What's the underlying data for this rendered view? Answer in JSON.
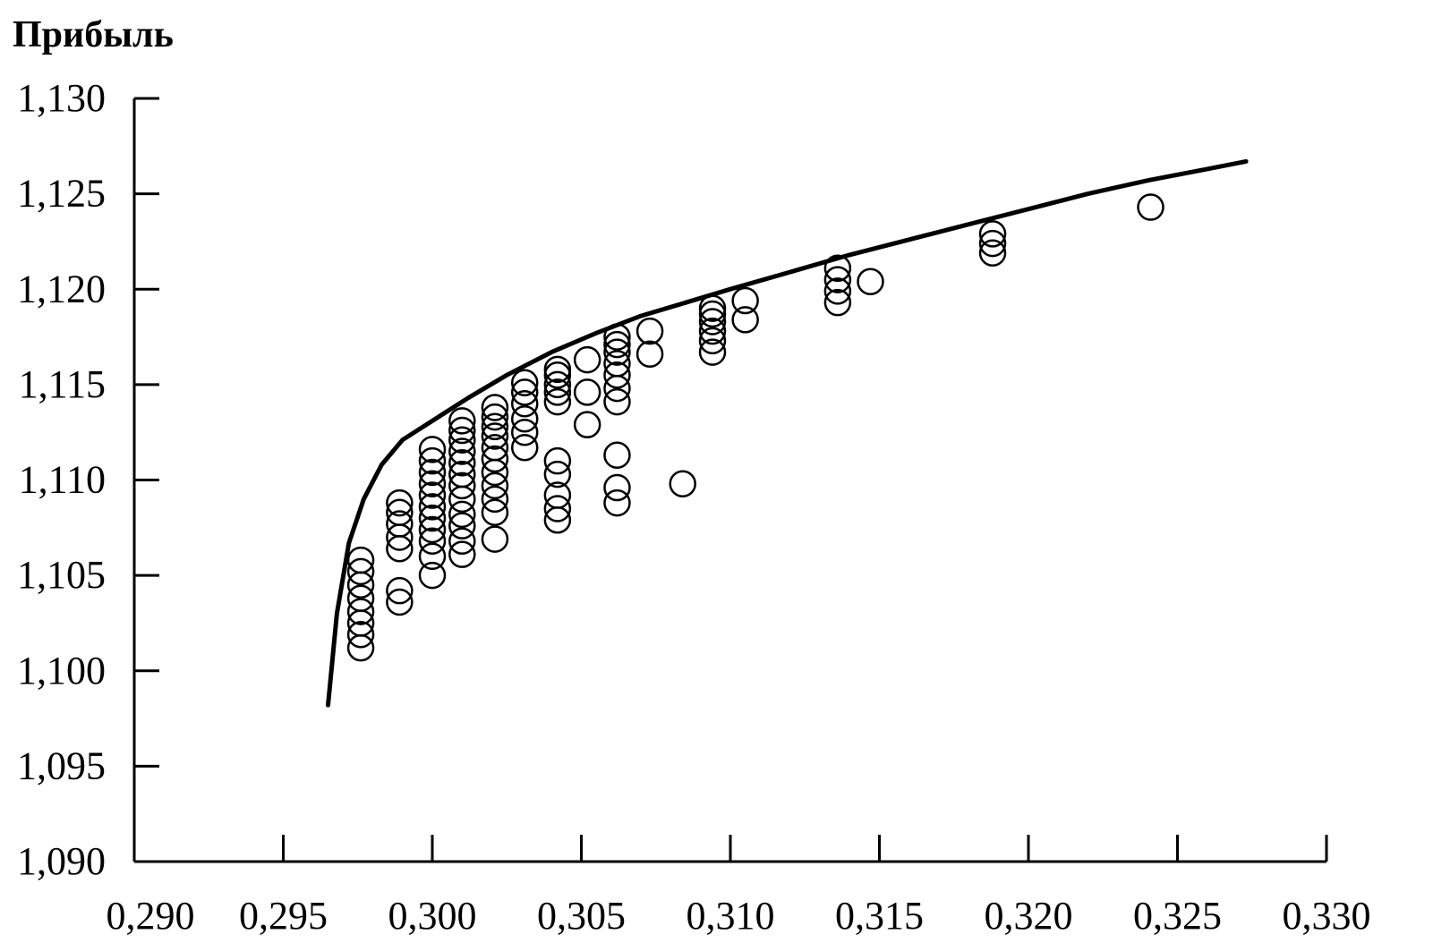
{
  "chart_data": {
    "type": "scatter",
    "title": "",
    "xlabel": "",
    "ylabel": "Прибыль",
    "xlim": [
      0.29,
      0.33
    ],
    "ylim": [
      1.09,
      1.13
    ],
    "x_ticks": [
      {
        "value": 0.29,
        "label": "0,290"
      },
      {
        "value": 0.295,
        "label": "0,295"
      },
      {
        "value": 0.3,
        "label": "0,300"
      },
      {
        "value": 0.305,
        "label": "0,305"
      },
      {
        "value": 0.31,
        "label": "0,310"
      },
      {
        "value": 0.315,
        "label": "0,315"
      },
      {
        "value": 0.32,
        "label": "0,320"
      },
      {
        "value": 0.325,
        "label": "0,325"
      },
      {
        "value": 0.33,
        "label": "0,330"
      }
    ],
    "y_ticks": [
      {
        "value": 1.09,
        "label": "1,090"
      },
      {
        "value": 1.095,
        "label": "1,095"
      },
      {
        "value": 1.1,
        "label": "1,100"
      },
      {
        "value": 1.105,
        "label": "1,105"
      },
      {
        "value": 1.11,
        "label": "1,110"
      },
      {
        "value": 1.115,
        "label": "1,115"
      },
      {
        "value": 1.12,
        "label": "1,120"
      },
      {
        "value": 1.125,
        "label": "1,125"
      },
      {
        "value": 1.13,
        "label": "1,130"
      }
    ],
    "grid": false,
    "series": [
      {
        "kind": "points",
        "marker": "open-circle",
        "color": "#000000",
        "points": [
          [
            0.2976,
            1.1012
          ],
          [
            0.2976,
            1.1019
          ],
          [
            0.2976,
            1.1025
          ],
          [
            0.2976,
            1.1031
          ],
          [
            0.2976,
            1.1038
          ],
          [
            0.2976,
            1.1045
          ],
          [
            0.2976,
            1.1052
          ],
          [
            0.2976,
            1.1058
          ],
          [
            0.2989,
            1.1036
          ],
          [
            0.2989,
            1.1042
          ],
          [
            0.2989,
            1.1064
          ],
          [
            0.2989,
            1.107
          ],
          [
            0.2989,
            1.1077
          ],
          [
            0.2989,
            1.1083
          ],
          [
            0.2989,
            1.1088
          ],
          [
            0.3,
            1.105
          ],
          [
            0.3,
            1.106
          ],
          [
            0.3,
            1.1068
          ],
          [
            0.3,
            1.1074
          ],
          [
            0.3,
            1.108
          ],
          [
            0.3,
            1.1086
          ],
          [
            0.3,
            1.1092
          ],
          [
            0.3,
            1.1098
          ],
          [
            0.3,
            1.1104
          ],
          [
            0.3,
            1.111
          ],
          [
            0.3,
            1.1116
          ],
          [
            0.301,
            1.1061
          ],
          [
            0.301,
            1.1068
          ],
          [
            0.301,
            1.1076
          ],
          [
            0.301,
            1.1082
          ],
          [
            0.301,
            1.109
          ],
          [
            0.301,
            1.1097
          ],
          [
            0.301,
            1.1103
          ],
          [
            0.301,
            1.1109
          ],
          [
            0.301,
            1.1115
          ],
          [
            0.301,
            1.1121
          ],
          [
            0.301,
            1.1126
          ],
          [
            0.301,
            1.1131
          ],
          [
            0.3021,
            1.1069
          ],
          [
            0.3021,
            1.1083
          ],
          [
            0.3021,
            1.109
          ],
          [
            0.3021,
            1.1097
          ],
          [
            0.3021,
            1.1104
          ],
          [
            0.3021,
            1.1111
          ],
          [
            0.3021,
            1.1117
          ],
          [
            0.3021,
            1.1123
          ],
          [
            0.3021,
            1.1128
          ],
          [
            0.3021,
            1.1133
          ],
          [
            0.3021,
            1.1138
          ],
          [
            0.3031,
            1.1117
          ],
          [
            0.3031,
            1.1125
          ],
          [
            0.3031,
            1.1132
          ],
          [
            0.3031,
            1.114
          ],
          [
            0.3031,
            1.1146
          ],
          [
            0.3031,
            1.1151
          ],
          [
            0.3042,
            1.1079
          ],
          [
            0.3042,
            1.1085
          ],
          [
            0.3042,
            1.1092
          ],
          [
            0.3042,
            1.1103
          ],
          [
            0.3042,
            1.111
          ],
          [
            0.3042,
            1.1141
          ],
          [
            0.3042,
            1.1146
          ],
          [
            0.3042,
            1.115
          ],
          [
            0.3042,
            1.1155
          ],
          [
            0.3042,
            1.1158
          ],
          [
            0.3052,
            1.1129
          ],
          [
            0.3052,
            1.1146
          ],
          [
            0.3052,
            1.1163
          ],
          [
            0.3062,
            1.1088
          ],
          [
            0.3062,
            1.1096
          ],
          [
            0.3062,
            1.1113
          ],
          [
            0.3062,
            1.1141
          ],
          [
            0.3062,
            1.1148
          ],
          [
            0.3062,
            1.1155
          ],
          [
            0.3062,
            1.1161
          ],
          [
            0.3062,
            1.1167
          ],
          [
            0.3062,
            1.1171
          ],
          [
            0.3062,
            1.1175
          ],
          [
            0.3073,
            1.1166
          ],
          [
            0.3073,
            1.1178
          ],
          [
            0.3084,
            1.1098
          ],
          [
            0.3094,
            1.1167
          ],
          [
            0.3094,
            1.1173
          ],
          [
            0.3094,
            1.1178
          ],
          [
            0.3094,
            1.1183
          ],
          [
            0.3094,
            1.1187
          ],
          [
            0.3094,
            1.119
          ],
          [
            0.3105,
            1.1184
          ],
          [
            0.3105,
            1.1194
          ],
          [
            0.3136,
            1.1193
          ],
          [
            0.3136,
            1.1199
          ],
          [
            0.3136,
            1.1205
          ],
          [
            0.3136,
            1.1211
          ],
          [
            0.3147,
            1.1204
          ],
          [
            0.3188,
            1.1219
          ],
          [
            0.3188,
            1.1224
          ],
          [
            0.3188,
            1.1229
          ],
          [
            0.3241,
            1.1243
          ]
        ]
      },
      {
        "kind": "curve",
        "color": "#000000",
        "points": [
          [
            0.2965,
            1.0982
          ],
          [
            0.2968,
            1.103
          ],
          [
            0.2972,
            1.1067
          ],
          [
            0.2977,
            1.109
          ],
          [
            0.2983,
            1.1108
          ],
          [
            0.299,
            1.1121
          ],
          [
            0.3,
            1.1131
          ],
          [
            0.3012,
            1.1143
          ],
          [
            0.3025,
            1.1155
          ],
          [
            0.304,
            1.1167
          ],
          [
            0.3055,
            1.1177
          ],
          [
            0.307,
            1.1186
          ],
          [
            0.3085,
            1.1193
          ],
          [
            0.31,
            1.12
          ],
          [
            0.312,
            1.1209
          ],
          [
            0.314,
            1.1218
          ],
          [
            0.316,
            1.1226
          ],
          [
            0.318,
            1.1234
          ],
          [
            0.32,
            1.1242
          ],
          [
            0.322,
            1.125
          ],
          [
            0.324,
            1.1257
          ],
          [
            0.326,
            1.1263
          ],
          [
            0.3273,
            1.1267
          ]
        ]
      }
    ]
  }
}
